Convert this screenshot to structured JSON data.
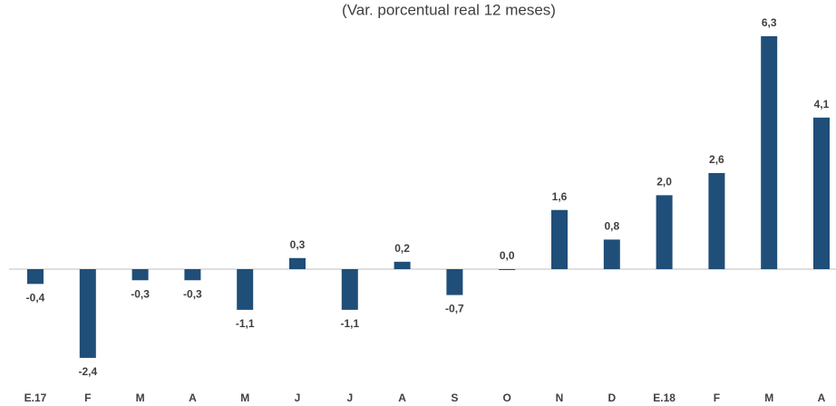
{
  "chart_data": {
    "type": "bar",
    "subtitle": "(Var. porcentual real 12 meses)",
    "categories": [
      "E.17",
      "F",
      "M",
      "A",
      "M",
      "J",
      "J",
      "A",
      "S",
      "O",
      "N",
      "D",
      "E.18",
      "F",
      "M",
      "A"
    ],
    "values": [
      -0.4,
      -2.4,
      -0.3,
      -0.3,
      -1.1,
      0.3,
      -1.1,
      0.2,
      -0.7,
      0.0,
      1.6,
      0.8,
      2.0,
      2.6,
      6.3,
      4.1
    ],
    "value_labels": [
      "-0,4",
      "-2,4",
      "-0,3",
      "-0,3",
      "-1,1",
      "0,3",
      "-1,1",
      "0,2",
      "-0,7",
      "0,0",
      "1,6",
      "0,8",
      "2,0",
      "2,6",
      "6,3",
      "4,1"
    ],
    "color": "#1f4e79"
  }
}
